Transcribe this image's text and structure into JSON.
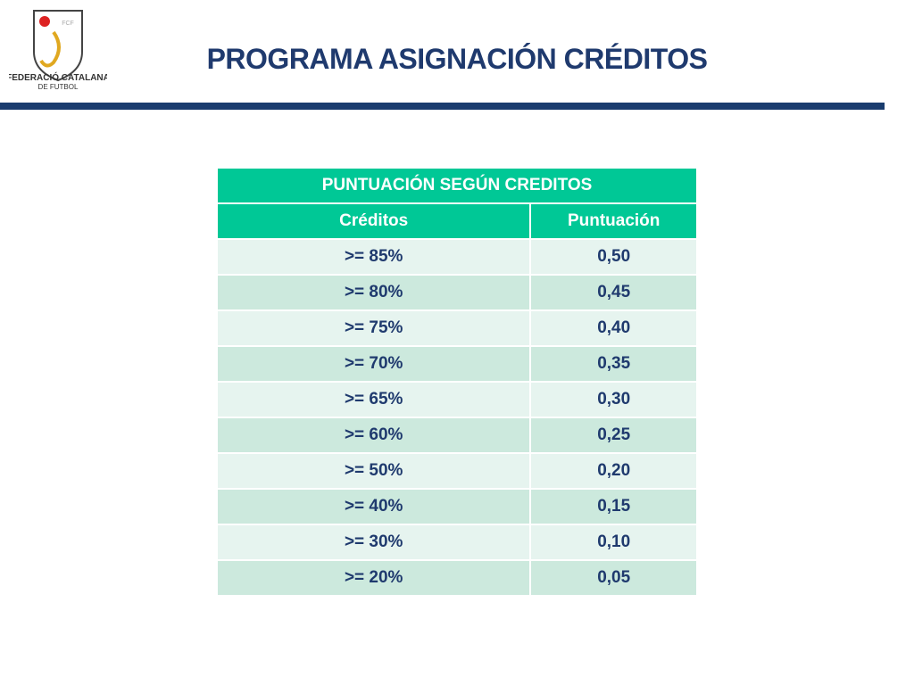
{
  "header": {
    "logo": {
      "mark": "FCF",
      "name": "FEDERACIÓ CATALANA",
      "subname": "DE FUTBOL"
    },
    "title": "PROGRAMA ASIGNACIÓN CRÉDITOS"
  },
  "table": {
    "title": "PUNTUACIÓN SEGÚN CREDITOS",
    "columns": [
      "Créditos",
      "Puntuación"
    ],
    "rows": [
      [
        ">= 85%",
        "0,50"
      ],
      [
        ">= 80%",
        "0,45"
      ],
      [
        ">= 75%",
        "0,40"
      ],
      [
        ">= 70%",
        "0,35"
      ],
      [
        ">= 65%",
        "0,30"
      ],
      [
        ">= 60%",
        "0,25"
      ],
      [
        ">= 50%",
        "0,20"
      ],
      [
        ">= 40%",
        "0,15"
      ],
      [
        ">= 30%",
        "0,10"
      ],
      [
        ">= 20%",
        "0,05"
      ]
    ]
  }
}
